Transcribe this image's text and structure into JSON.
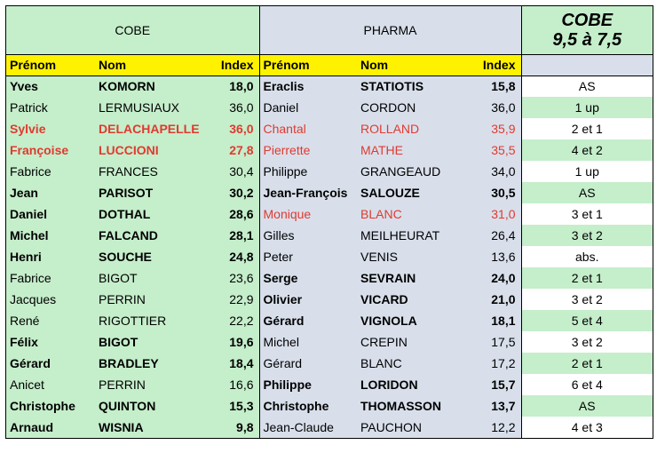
{
  "headers": {
    "cobe": "COBE",
    "pharma": "PHARMA",
    "score_top": "COBE",
    "score_bot": "9,5 à 7,5",
    "prenom": "Prénom",
    "nom": "Nom",
    "index": "Index"
  },
  "widths": {
    "c_prenom": 100,
    "c_nom": 130,
    "c_idx": 55,
    "p_prenom": 110,
    "p_nom": 130,
    "p_idx": 55,
    "res": 148
  },
  "rows": [
    {
      "c": {
        "p": "Yves",
        "n": "KOMORN",
        "i": "18,0",
        "b": true,
        "r": false
      },
      "ph": {
        "p": "Eraclis",
        "n": "STATIOTIS",
        "i": "15,8",
        "b": true,
        "r": false
      },
      "res": "AS"
    },
    {
      "c": {
        "p": "Patrick",
        "n": "LERMUSIAUX",
        "i": "36,0",
        "b": false,
        "r": false
      },
      "ph": {
        "p": "Daniel",
        "n": "CORDON",
        "i": "36,0",
        "b": false,
        "r": false
      },
      "res": "1 up"
    },
    {
      "c": {
        "p": "Sylvie",
        "n": "DELACHAPELLE",
        "i": "36,0",
        "b": true,
        "r": true
      },
      "ph": {
        "p": "Chantal",
        "n": "ROLLAND",
        "i": "35,9",
        "b": false,
        "r": true
      },
      "res": "2 et 1"
    },
    {
      "c": {
        "p": "Françoise",
        "n": "LUCCIONI",
        "i": "27,8",
        "b": true,
        "r": true
      },
      "ph": {
        "p": "Pierrette",
        "n": "MATHE",
        "i": "35,5",
        "b": false,
        "r": true
      },
      "res": "4 et 2"
    },
    {
      "c": {
        "p": "Fabrice",
        "n": "FRANCES",
        "i": "30,4",
        "b": false,
        "r": false
      },
      "ph": {
        "p": "Philippe",
        "n": "GRANGEAUD",
        "i": "34,0",
        "b": false,
        "r": false
      },
      "res": "1 up"
    },
    {
      "c": {
        "p": "Jean",
        "n": "PARISOT",
        "i": "30,2",
        "b": true,
        "r": false
      },
      "ph": {
        "p": "Jean-François",
        "n": "SALOUZE",
        "i": "30,5",
        "b": true,
        "r": false
      },
      "res": "AS"
    },
    {
      "c": {
        "p": "Daniel",
        "n": "DOTHAL",
        "i": "28,6",
        "b": true,
        "r": false
      },
      "ph": {
        "p": "Monique",
        "n": "BLANC",
        "i": "31,0",
        "b": false,
        "r": true
      },
      "res": "3 et 1"
    },
    {
      "c": {
        "p": "Michel",
        "n": "FALCAND",
        "i": "28,1",
        "b": true,
        "r": false
      },
      "ph": {
        "p": "Gilles",
        "n": "MEILHEURAT",
        "i": "26,4",
        "b": false,
        "r": false
      },
      "res": "3 et 2"
    },
    {
      "c": {
        "p": "Henri",
        "n": "SOUCHE",
        "i": "24,8",
        "b": true,
        "r": false
      },
      "ph": {
        "p": "Peter",
        "n": "VENIS",
        "i": "13,6",
        "b": false,
        "r": false
      },
      "res": "abs."
    },
    {
      "c": {
        "p": "Fabrice",
        "n": "BIGOT",
        "i": "23,6",
        "b": false,
        "r": false
      },
      "ph": {
        "p": "Serge",
        "n": "SEVRAIN",
        "i": "24,0",
        "b": true,
        "r": false
      },
      "res": "2 et 1"
    },
    {
      "c": {
        "p": "Jacques",
        "n": "PERRIN",
        "i": "22,9",
        "b": false,
        "r": false
      },
      "ph": {
        "p": "Olivier",
        "n": "VICARD",
        "i": "21,0",
        "b": true,
        "r": false
      },
      "res": "3 et 2"
    },
    {
      "c": {
        "p": "René",
        "n": "RIGOTTIER",
        "i": "22,2",
        "b": false,
        "r": false
      },
      "ph": {
        "p": "Gérard",
        "n": "VIGNOLA",
        "i": "18,1",
        "b": true,
        "r": false
      },
      "res": "5 et 4"
    },
    {
      "c": {
        "p": "Félix",
        "n": "BIGOT",
        "i": "19,6",
        "b": true,
        "r": false
      },
      "ph": {
        "p": "Michel",
        "n": "CREPIN",
        "i": "17,5",
        "b": false,
        "r": false
      },
      "res": "3 et 2"
    },
    {
      "c": {
        "p": "Gérard",
        "n": "BRADLEY",
        "i": "18,4",
        "b": true,
        "r": false
      },
      "ph": {
        "p": "Gérard",
        "n": "BLANC",
        "i": "17,2",
        "b": false,
        "r": false
      },
      "res": "2 et 1"
    },
    {
      "c": {
        "p": "Anicet",
        "n": "PERRIN",
        "i": "16,6",
        "b": false,
        "r": false
      },
      "ph": {
        "p": "Philippe",
        "n": "LORIDON",
        "i": "15,7",
        "b": true,
        "r": false
      },
      "res": "6 et 4"
    },
    {
      "c": {
        "p": "Christophe",
        "n": "QUINTON",
        "i": "15,3",
        "b": true,
        "r": false
      },
      "ph": {
        "p": "Christophe",
        "n": "THOMASSON",
        "i": "13,7",
        "b": true,
        "r": false
      },
      "res": "AS"
    },
    {
      "c": {
        "p": "Arnaud",
        "n": "WISNIA",
        "i": "9,8",
        "b": true,
        "r": false
      },
      "ph": {
        "p": "Jean-Claude",
        "n": "PAUCHON",
        "i": "12,2",
        "b": false,
        "r": false
      },
      "res": "4 et 3"
    }
  ]
}
